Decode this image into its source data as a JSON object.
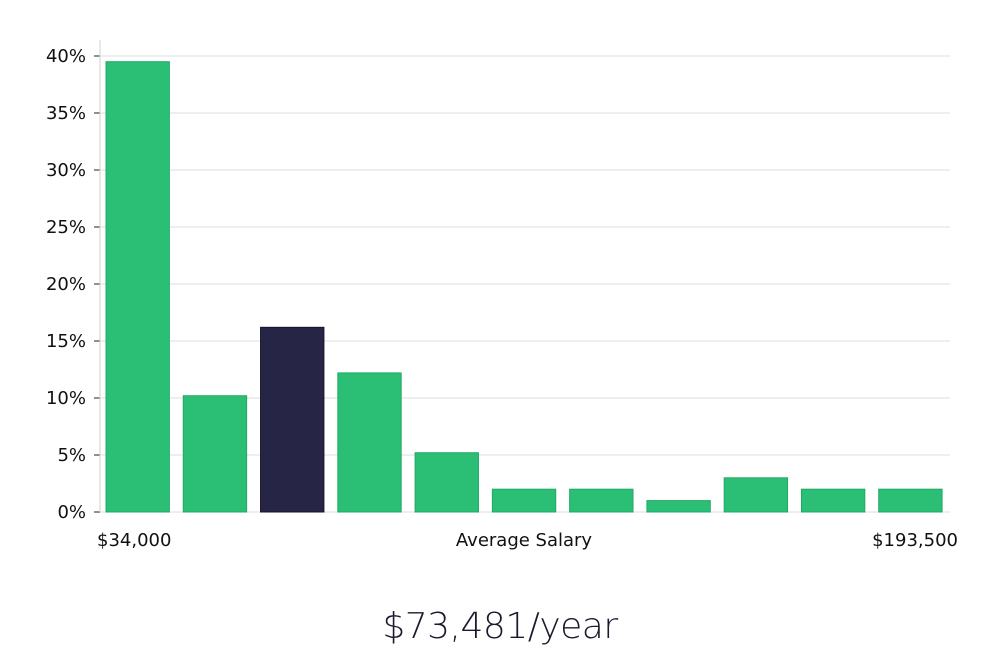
{
  "chart_data": {
    "type": "bar",
    "values": [
      39.5,
      10.2,
      16.2,
      12.2,
      5.2,
      2.0,
      2.0,
      1.0,
      3.0,
      2.0,
      2.0
    ],
    "highlight_index": 2,
    "ylim": [
      0,
      40
    ],
    "y_ticks": [
      "0%",
      "5%",
      "10%",
      "15%",
      "20%",
      "25%",
      "30%",
      "35%",
      "40%"
    ],
    "x_min_label": "$34,000",
    "x_max_label": "$193,500",
    "xlabel": "Average Salary",
    "grid": true,
    "colors": {
      "bar": "#2bbf76",
      "highlight": "#262545",
      "grid": "#dcdcdc",
      "axis": "#d0d0d0"
    }
  },
  "salary_label": "$73,481/year"
}
